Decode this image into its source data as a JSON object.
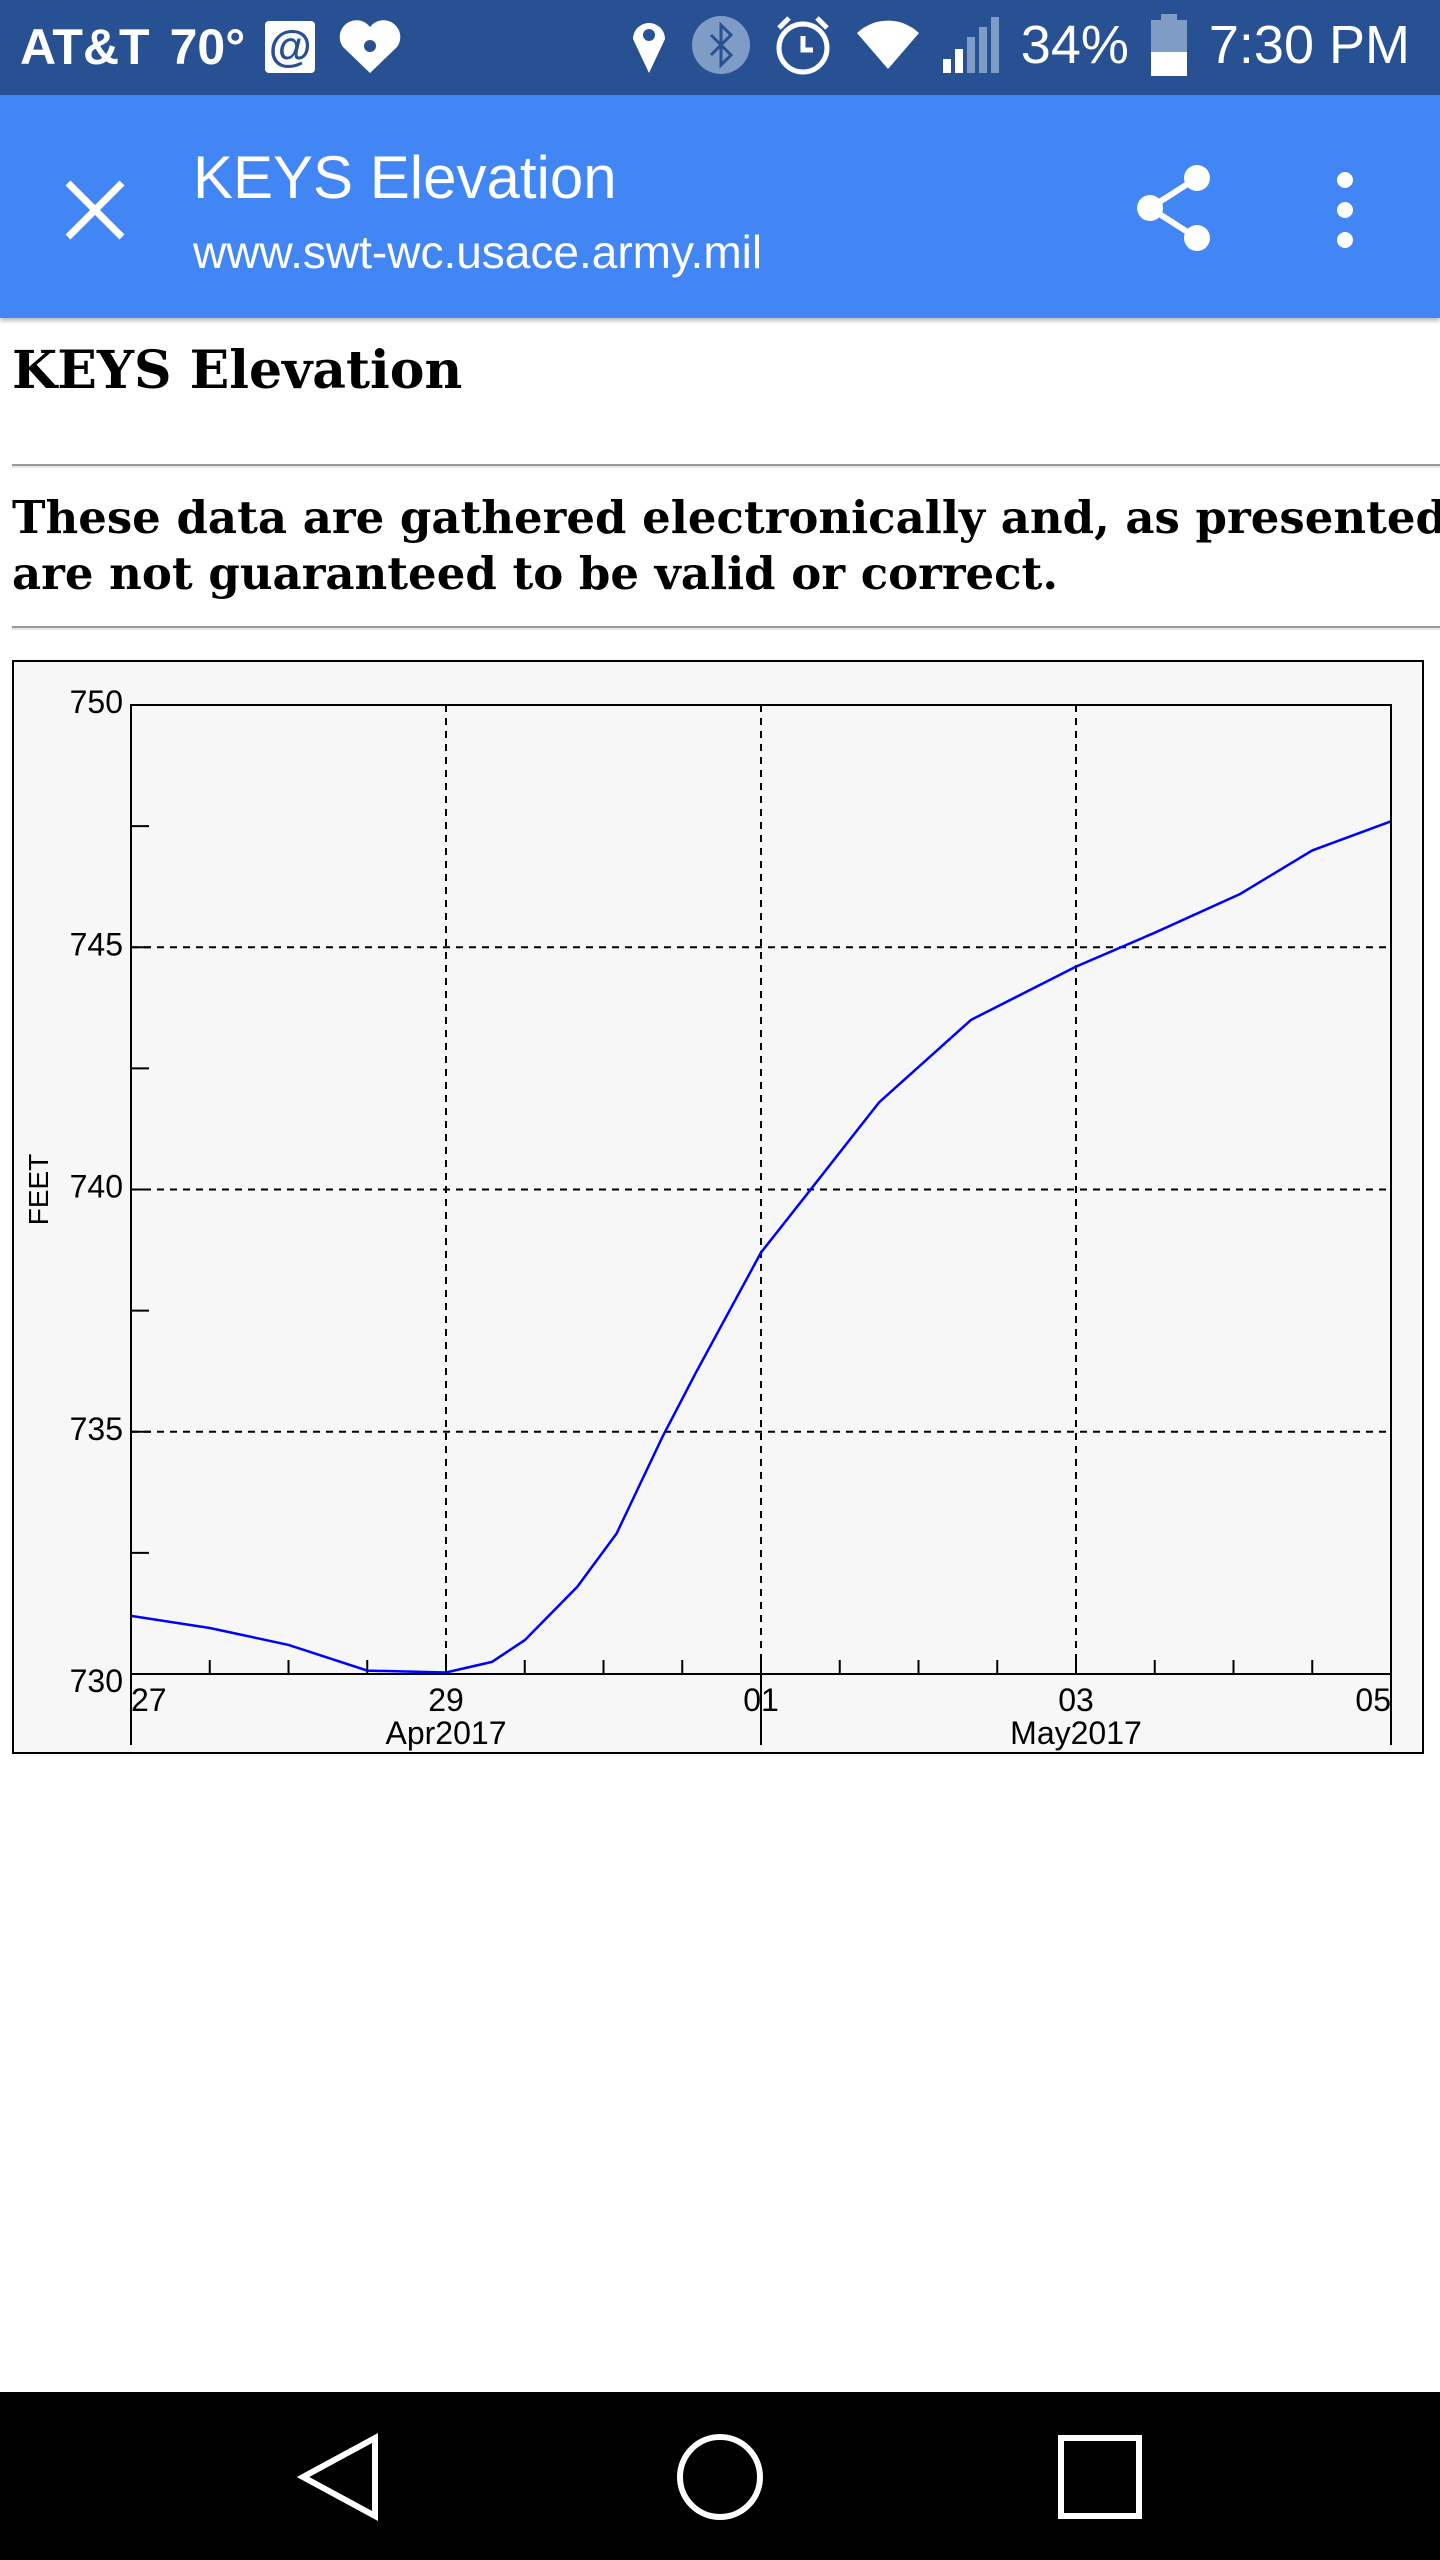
{
  "status_bar": {
    "carrier": "AT&T",
    "temperature": "70°",
    "battery": "34%",
    "battery_level": 0.34,
    "time": "7:30 PM",
    "icons": [
      "email-icon",
      "iheartradio-icon",
      "location-icon",
      "bluetooth-icon",
      "alarm-icon",
      "wifi-icon",
      "signal-icon",
      "battery-icon"
    ]
  },
  "toolbar": {
    "title": "KEYS Elevation",
    "url": "www.swt-wc.usace.army.mil",
    "close_icon": "close-icon",
    "share_icon": "share-icon",
    "more_icon": "more-vert-icon",
    "color": "#4285f4"
  },
  "page": {
    "heading": "KEYS Elevation",
    "disclaimer_line1": "These data are gathered electronically and, as presented, ha",
    "disclaimer_line2": "are not guaranteed to be valid or correct."
  },
  "chart_data": {
    "type": "line",
    "title": "",
    "ylabel": "FEET",
    "xlabel": "",
    "ylim": [
      730,
      750
    ],
    "xlim": [
      "2017-04-27T00:00",
      "2017-05-05T00:00"
    ],
    "y_ticks": [
      "730",
      "735",
      "740",
      "745",
      "750"
    ],
    "x_ticks": [
      {
        "label": "27",
        "date": "2017-04-27"
      },
      {
        "label": "29",
        "date": "2017-04-29"
      },
      {
        "label": "01",
        "date": "2017-05-01"
      },
      {
        "label": "03",
        "date": "2017-05-03"
      },
      {
        "label": "05",
        "date": "2017-05-05"
      }
    ],
    "x_month_labels": [
      {
        "label": "Apr2017",
        "date": "2017-04-29"
      },
      {
        "label": "May2017",
        "date": "2017-05-03"
      }
    ],
    "grid": true,
    "background": "#f7f7f7",
    "series": [
      {
        "color": "#0000ff",
        "x": [
          "2017-04-27T00:00",
          "2017-04-27T12:00",
          "2017-04-28T00:00",
          "2017-04-28T12:00",
          "2017-04-29T00:00",
          "2017-04-29T07:00",
          "2017-04-29T12:00",
          "2017-04-29T20:00",
          "2017-04-30T02:00",
          "2017-04-30T09:00",
          "2017-04-30T14:00",
          "2017-05-01T00:00",
          "2017-05-01T07:00",
          "2017-05-01T18:00",
          "2017-05-02T08:00",
          "2017-05-03T00:00",
          "2017-05-03T12:00",
          "2017-05-04T01:00",
          "2017-05-04T12:00",
          "2017-05-05T00:00"
        ],
        "y": [
          731.2,
          730.95,
          730.6,
          730.07,
          730.03,
          730.25,
          730.7,
          731.8,
          732.9,
          734.9,
          736.2,
          738.7,
          739.9,
          741.8,
          743.5,
          744.6,
          745.3,
          746.1,
          747.0,
          747.6
        ]
      }
    ]
  }
}
